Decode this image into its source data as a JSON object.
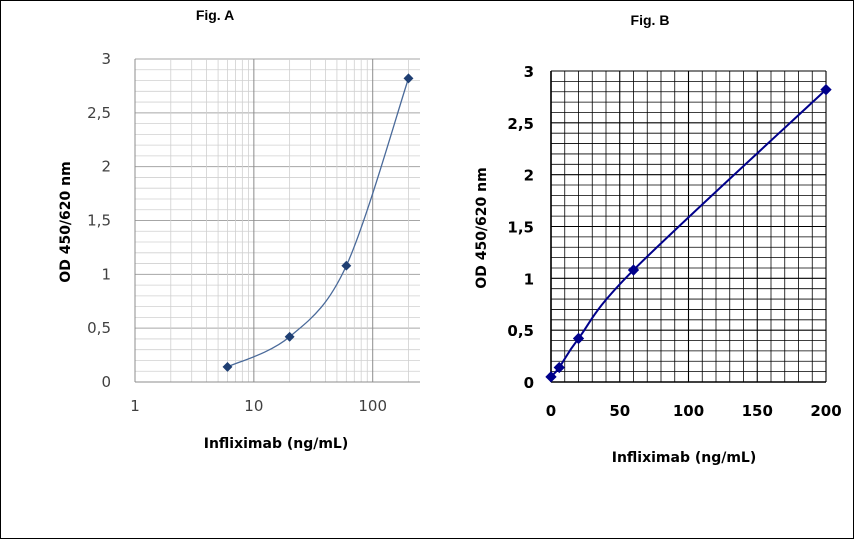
{
  "chart_data": [
    {
      "type": "scatter",
      "title": "Fig. A",
      "xlabel": "Infliximab (ng/mL)",
      "ylabel": "OD 450/620 nm",
      "xscale": "log",
      "xlim": [
        1,
        200
      ],
      "ylim": [
        0,
        3
      ],
      "xticks": [
        "1",
        "10",
        "100"
      ],
      "yticks": [
        "0",
        "0,5",
        "1",
        "1,5",
        "2",
        "2,5",
        "3"
      ],
      "grid": true,
      "series": [
        {
          "x": [
            6,
            20,
            60,
            200
          ],
          "y": [
            0.14,
            0.42,
            1.08,
            2.82
          ],
          "color": "#4a6a9a"
        }
      ]
    },
    {
      "type": "scatter",
      "title": "Fig. B",
      "xlabel": "Infliximab (ng/mL)",
      "ylabel": "OD 450/620 nm",
      "xscale": "linear",
      "xlim": [
        0,
        200
      ],
      "ylim": [
        0,
        3
      ],
      "xticks": [
        "0",
        "50",
        "100",
        "150",
        "200"
      ],
      "yticks": [
        "0",
        "0,5",
        "1",
        "1,5",
        "2",
        "2,5",
        "3"
      ],
      "grid": true,
      "series": [
        {
          "x": [
            0,
            6,
            20,
            60,
            200
          ],
          "y": [
            0.05,
            0.14,
            0.42,
            1.08,
            2.82
          ],
          "color": "#00008b"
        }
      ]
    }
  ]
}
